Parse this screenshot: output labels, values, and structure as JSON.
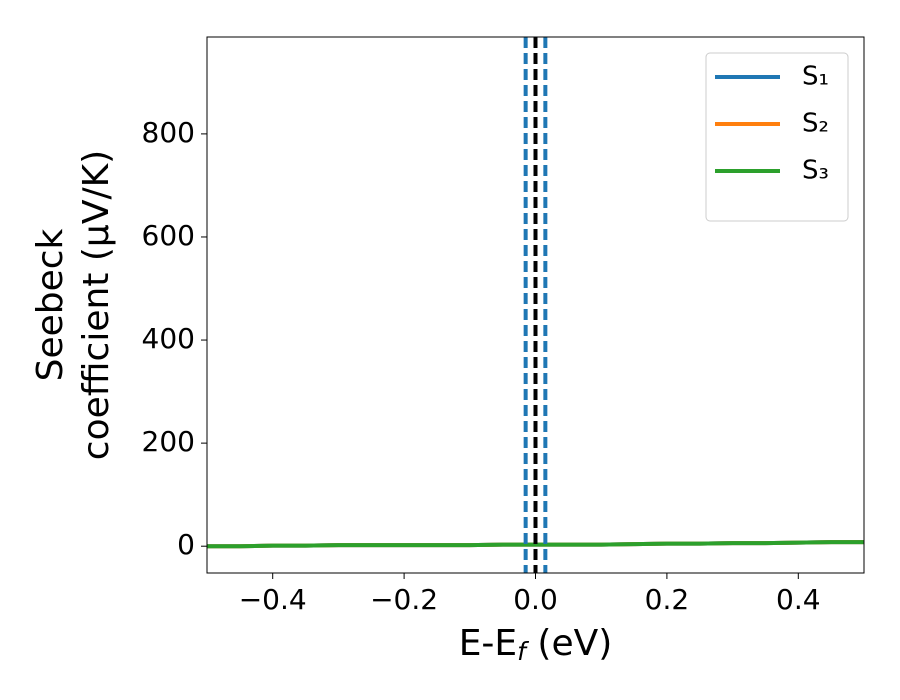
{
  "chart_data": {
    "type": "line",
    "xlabel": [
      "E-E",
      "f",
      " (eV)"
    ],
    "ylabel": [
      "Seebeck",
      "coefficient  (μV/K)"
    ],
    "x": [
      -0.5,
      -0.45,
      -0.4,
      -0.35,
      -0.3,
      -0.25,
      -0.2,
      -0.15,
      -0.1,
      -0.05,
      0,
      0.05,
      0.1,
      0.15,
      0.2,
      0.25,
      0.3,
      0.35,
      0.4,
      0.45,
      0.5
    ],
    "series": [
      {
        "name": "S₁",
        "color": "#1f77b4",
        "values": [
          0,
          0,
          1,
          1,
          2,
          2,
          2,
          2,
          2,
          3,
          3,
          3,
          3,
          4,
          5,
          5,
          6,
          6,
          7,
          8,
          8
        ]
      },
      {
        "name": "S₂",
        "color": "#ff7f0e",
        "values": [
          0,
          0,
          1,
          1,
          2,
          2,
          2,
          2,
          2,
          3,
          3,
          3,
          3,
          4,
          5,
          5,
          6,
          6,
          7,
          8,
          8
        ]
      },
      {
        "name": "S₃",
        "color": "#2ca02c",
        "values": [
          0,
          0,
          1,
          1,
          2,
          2,
          2,
          2,
          2,
          3,
          3,
          3,
          3,
          4,
          5,
          5,
          6,
          6,
          7,
          8,
          8
        ]
      }
    ],
    "vlines": [
      {
        "x": 0,
        "color": "#000000"
      },
      {
        "x": -0.015,
        "color": "#1f77b4"
      },
      {
        "x": 0.015,
        "color": "#1f77b4"
      }
    ],
    "xlim": [
      -0.5,
      0.5
    ],
    "ylim": [
      -52,
      988
    ],
    "xticks": [
      {
        "value": -0.4,
        "label": "−0.4"
      },
      {
        "value": -0.2,
        "label": "−0.2"
      },
      {
        "value": 0,
        "label": "0.0"
      },
      {
        "value": 0.2,
        "label": "0.2"
      },
      {
        "value": 0.4,
        "label": "0.4"
      }
    ],
    "yticks": [
      0,
      200,
      400,
      600,
      800
    ],
    "legend": "upper right"
  }
}
